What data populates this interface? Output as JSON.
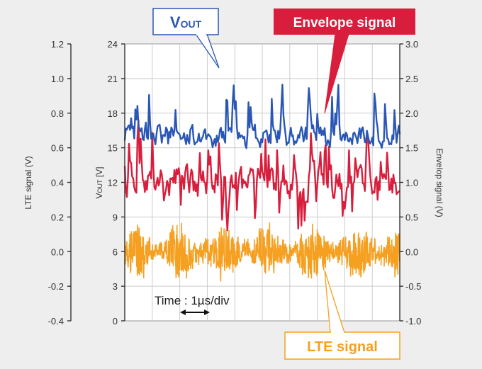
{
  "chart_data": {
    "type": "line",
    "title": "",
    "x_annotation": "Time : 1µs/div",
    "axes": {
      "left_outer": {
        "label": "LTE signal (V)",
        "ticks": [
          "1.2",
          "1.0",
          "0.8",
          "0.6",
          "0.4",
          "0.2",
          "0.0",
          "-0.2",
          "-0.4"
        ],
        "range": [
          -0.4,
          1.2
        ]
      },
      "left_inner": {
        "label": "Vout [V]",
        "label_main": "V",
        "label_sub": "OUT",
        "label_unit": " [V]",
        "ticks": [
          "24",
          "21",
          "18",
          "15",
          "12",
          "9",
          "6",
          "3",
          "0"
        ],
        "range": [
          0,
          24
        ]
      },
      "right": {
        "label": "Envelop signal (V)",
        "ticks": [
          "3.0",
          "2.5",
          "2.0",
          "1.5",
          "1.0",
          "0.5",
          "0.0",
          "-0.5",
          "-1.0"
        ],
        "range": [
          -1.0,
          3.0
        ]
      }
    },
    "grid": true,
    "x_divisions": 10,
    "series": [
      {
        "name": "VOUT",
        "color": "#2a57b5",
        "axis": "left_inner",
        "approx_range": [
          13.5,
          22.5
        ],
        "typical": 16
      },
      {
        "name": "Envelope signal",
        "color": "#d81e3c",
        "axis": "right",
        "approx_range": [
          0.2,
          1.9
        ],
        "typical": 1.0
      },
      {
        "name": "LTE signal",
        "color": "#f5a020",
        "axis": "left_outer",
        "approx_range": [
          -0.2,
          0.25
        ],
        "typical": 0.0
      }
    ]
  },
  "callouts": {
    "vout": {
      "main": "V",
      "sub": "OUT",
      "color": "#2a57b5"
    },
    "envelope": {
      "text": "Envelope signal",
      "color": "#d81e3c"
    },
    "lte": {
      "text": "LTE signal",
      "color": "#f5a020"
    }
  }
}
